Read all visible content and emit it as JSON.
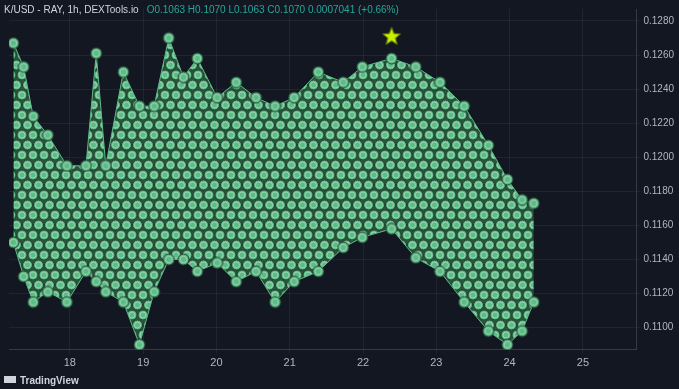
{
  "chart_data": {
    "type": "line",
    "title": "K/USD - RAY, 1h, DEXTools.io",
    "subtitle": "O0.1063 H0.1070 L0.1063 C0.1070 0.0007041 (+0.66%)",
    "annotations": [
      "TradingView"
    ],
    "xlim": [
      17.17,
      25.73
    ],
    "xticks": [
      18,
      19,
      20,
      21,
      22,
      23,
      24,
      25
    ],
    "ylim": [
      0.1087,
      0.1287
    ],
    "yticks": [
      {
        "value": 0.11,
        "label": "0.1100"
      },
      {
        "value": 0.112,
        "label": "0.1120"
      },
      {
        "value": 0.114,
        "label": "0.1140"
      },
      {
        "value": 0.116,
        "label": "0.1160"
      },
      {
        "value": 0.118,
        "label": "0.1180"
      },
      {
        "value": 0.12,
        "label": "0.1200"
      },
      {
        "value": 0.122,
        "label": "0.1220"
      },
      {
        "value": 0.124,
        "label": "0.1240"
      },
      {
        "value": 0.126,
        "label": "0.1260"
      },
      {
        "value": 0.128,
        "label": "0.1280"
      }
    ],
    "grid": true,
    "series": [
      {
        "type": "line",
        "color": "#5dbb86",
        "marker": "circle",
        "x": [
          17.23,
          17.37,
          17.5,
          17.7,
          17.96,
          18.22,
          18.36,
          18.49,
          18.73,
          18.95,
          19.15,
          19.35,
          19.55,
          19.74,
          20.01,
          20.27,
          20.54,
          20.8,
          21.06,
          21.39,
          21.73,
          21.99,
          22.39,
          22.72,
          23.05,
          23.38,
          23.71,
          23.97,
          24.17,
          24.33
        ],
        "values": [
          0.115,
          0.113,
          0.1115,
          0.1121,
          0.1115,
          0.1133,
          0.1127,
          0.1121,
          0.1115,
          0.109,
          0.1121,
          0.114,
          0.114,
          0.1133,
          0.1138,
          0.1127,
          0.1133,
          0.1115,
          0.1127,
          0.1133,
          0.1147,
          0.1153,
          0.1158,
          0.1141,
          0.1133,
          0.1115,
          0.1098,
          0.109,
          0.1098,
          0.1115
        ]
      },
      {
        "type": "area",
        "color": "#5dbb86",
        "marker": "circle",
        "x": [
          17.23,
          17.37,
          17.5,
          17.7,
          17.96,
          18.22,
          18.36,
          18.49,
          18.73,
          18.95,
          19.15,
          19.35,
          19.55,
          19.74,
          20.01,
          20.27,
          20.54,
          20.8,
          21.06,
          21.39,
          21.73,
          21.99,
          22.39,
          22.72,
          23.05,
          23.38,
          23.71,
          23.97,
          24.17,
          24.33
        ],
        "values": [
          0.1267,
          0.1253,
          0.1224,
          0.1213,
          0.1195,
          0.1195,
          0.1261,
          0.1195,
          0.125,
          0.123,
          0.123,
          0.127,
          0.1247,
          0.1258,
          0.1235,
          0.1244,
          0.1235,
          0.123,
          0.1235,
          0.125,
          0.1244,
          0.1253,
          0.1258,
          0.1253,
          0.1244,
          0.123,
          0.1207,
          0.1187,
          0.1175,
          0.1173
        ]
      },
      {
        "type": "scatter",
        "marker": "circle",
        "x": [
          21.0,
          21.24,
          21.73,
          21.42,
          21.13,
          21.37,
          21.63,
          21.9,
          22.21,
          22.45,
          21.86,
          22.12,
          22.65,
          22.87,
          23.11,
          23.38,
          23.61,
          23.84,
          21.73,
          21.95,
          22.43,
          22.69,
          23.05,
          23.31,
          23.57,
          23.84,
          21.95,
          22.25,
          22.58,
          22.91,
          23.27,
          23.61,
          23.93
        ],
        "values": [
          0.1204,
          0.1225,
          0.1233,
          0.1215,
          0.1194,
          0.1195,
          0.1209,
          0.1218,
          0.1213,
          0.1207,
          0.12,
          0.1194,
          0.1201,
          0.1197,
          0.1193,
          0.1191,
          0.119,
          0.1189,
          0.1178,
          0.1183,
          0.1185,
          0.1181,
          0.1178,
          0.1174,
          0.1171,
          0.117,
          0.1167,
          0.1161,
          0.1154,
          0.115,
          0.1147,
          0.1144,
          0.1143
        ],
        "colors": [
          "#a64dff",
          "#a64dff",
          "#a64dff",
          "#ff9933",
          "#ffe04d",
          "#66ff33",
          "#66ff33",
          "#ffe04d",
          "#33ccff",
          "#ff3333",
          "#33ccff",
          "#ff3333",
          "#a64dff",
          "#ffe04d",
          "#66ff33",
          "#33ccff",
          "#ff3333",
          "#a64dff",
          "#33ccff",
          "#ffe04d",
          "#a64dff",
          "#ffe04d",
          "#66ff33",
          "#33ccff",
          "#ff3333",
          "#a64dff",
          "#ff3333",
          "#a64dff",
          "#ffe04d",
          "#66ff33",
          "#33ccff",
          "#ff3333",
          "#a64dff"
        ]
      },
      {
        "type": "scatter",
        "marker": "star",
        "color": "#c8f000",
        "x": [
          22.39
        ],
        "values": [
          0.1271
        ]
      }
    ]
  }
}
